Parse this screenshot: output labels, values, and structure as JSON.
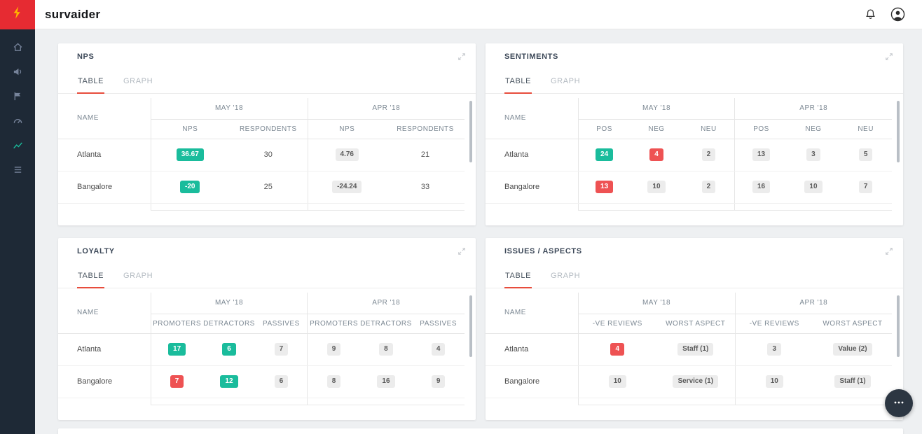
{
  "navbar": {
    "brand": "survaider"
  },
  "sidebar": {
    "items": [
      {
        "id": "home",
        "icon": "home",
        "active": false
      },
      {
        "id": "announcements",
        "icon": "megaphone",
        "active": false
      },
      {
        "id": "campaigns",
        "icon": "flag",
        "active": false
      },
      {
        "id": "performance",
        "icon": "gauge",
        "active": false
      },
      {
        "id": "analytics",
        "icon": "chart-line",
        "active": true
      },
      {
        "id": "reports",
        "icon": "list",
        "active": false
      }
    ]
  },
  "colors": {
    "positive_badge": "#1abc9c",
    "negative_badge": "#ee5253",
    "neutral_badge_bg": "#ececec",
    "tab_accent": "#e74c3c",
    "sidebar_active": "#1abc9c",
    "logo_bg": "#e62b32",
    "logo_bolt": "#ffb300"
  },
  "cards": [
    {
      "id": "nps",
      "title": "NPS",
      "tabs": [
        "TABLE",
        "GRAPH"
      ],
      "active_tab": "TABLE",
      "name_header": "NAME",
      "groups": [
        {
          "label": "MAY '18",
          "columns": [
            "NPS",
            "RESPONDENTS"
          ]
        },
        {
          "label": "APR '18",
          "columns": [
            "NPS",
            "RESPONDENTS"
          ]
        }
      ],
      "rows": [
        {
          "name": "Atlanta",
          "cells": [
            {
              "text": "36.67",
              "style": "green"
            },
            {
              "text": "30",
              "style": "plain"
            },
            {
              "text": "4.76",
              "style": "gray"
            },
            {
              "text": "21",
              "style": "plain"
            }
          ]
        },
        {
          "name": "Bangalore",
          "cells": [
            {
              "text": "-20",
              "style": "green"
            },
            {
              "text": "25",
              "style": "plain"
            },
            {
              "text": "-24.24",
              "style": "gray"
            },
            {
              "text": "33",
              "style": "plain"
            }
          ]
        }
      ]
    },
    {
      "id": "sentiments",
      "title": "SENTIMENTS",
      "tabs": [
        "TABLE",
        "GRAPH"
      ],
      "active_tab": "TABLE",
      "name_header": "NAME",
      "groups": [
        {
          "label": "MAY '18",
          "columns": [
            "POS",
            "NEG",
            "NEU"
          ]
        },
        {
          "label": "APR '18",
          "columns": [
            "POS",
            "NEG",
            "NEU"
          ]
        }
      ],
      "rows": [
        {
          "name": "Atlanta",
          "cells": [
            {
              "text": "24",
              "style": "green"
            },
            {
              "text": "4",
              "style": "red"
            },
            {
              "text": "2",
              "style": "gray"
            },
            {
              "text": "13",
              "style": "gray"
            },
            {
              "text": "3",
              "style": "gray"
            },
            {
              "text": "5",
              "style": "gray"
            }
          ]
        },
        {
          "name": "Bangalore",
          "cells": [
            {
              "text": "13",
              "style": "red"
            },
            {
              "text": "10",
              "style": "gray"
            },
            {
              "text": "2",
              "style": "gray"
            },
            {
              "text": "16",
              "style": "gray"
            },
            {
              "text": "10",
              "style": "gray"
            },
            {
              "text": "7",
              "style": "gray"
            }
          ]
        }
      ]
    },
    {
      "id": "loyalty",
      "title": "LOYALTY",
      "tabs": [
        "TABLE",
        "GRAPH"
      ],
      "active_tab": "TABLE",
      "name_header": "NAME",
      "groups": [
        {
          "label": "MAY '18",
          "columns": [
            "PROMOTERS",
            "DETRACTORS",
            "PASSIVES"
          ]
        },
        {
          "label": "APR '18",
          "columns": [
            "PROMOTERS",
            "DETRACTORS",
            "PASSIVES"
          ]
        }
      ],
      "rows": [
        {
          "name": "Atlanta",
          "cells": [
            {
              "text": "17",
              "style": "green"
            },
            {
              "text": "6",
              "style": "green"
            },
            {
              "text": "7",
              "style": "gray"
            },
            {
              "text": "9",
              "style": "gray"
            },
            {
              "text": "8",
              "style": "gray"
            },
            {
              "text": "4",
              "style": "gray"
            }
          ]
        },
        {
          "name": "Bangalore",
          "cells": [
            {
              "text": "7",
              "style": "red"
            },
            {
              "text": "12",
              "style": "green"
            },
            {
              "text": "6",
              "style": "gray"
            },
            {
              "text": "8",
              "style": "gray"
            },
            {
              "text": "16",
              "style": "gray"
            },
            {
              "text": "9",
              "style": "gray"
            }
          ]
        }
      ]
    },
    {
      "id": "issues-aspects",
      "title": "ISSUES / ASPECTS",
      "tabs": [
        "TABLE",
        "GRAPH"
      ],
      "active_tab": "TABLE",
      "name_header": "NAME",
      "groups": [
        {
          "label": "MAY '18",
          "columns": [
            "-VE REVIEWS",
            "WORST ASPECT"
          ]
        },
        {
          "label": "APR '18",
          "columns": [
            "-VE REVIEWS",
            "WORST ASPECT"
          ]
        }
      ],
      "rows": [
        {
          "name": "Atlanta",
          "cells": [
            {
              "text": "4",
              "style": "red"
            },
            {
              "text": "Staff (1)",
              "style": "gray"
            },
            {
              "text": "3",
              "style": "gray"
            },
            {
              "text": "Value (2)",
              "style": "gray"
            }
          ]
        },
        {
          "name": "Bangalore",
          "cells": [
            {
              "text": "10",
              "style": "gray"
            },
            {
              "text": "Service (1)",
              "style": "gray"
            },
            {
              "text": "10",
              "style": "gray"
            },
            {
              "text": "Staff (1)",
              "style": "gray"
            }
          ]
        }
      ]
    }
  ]
}
